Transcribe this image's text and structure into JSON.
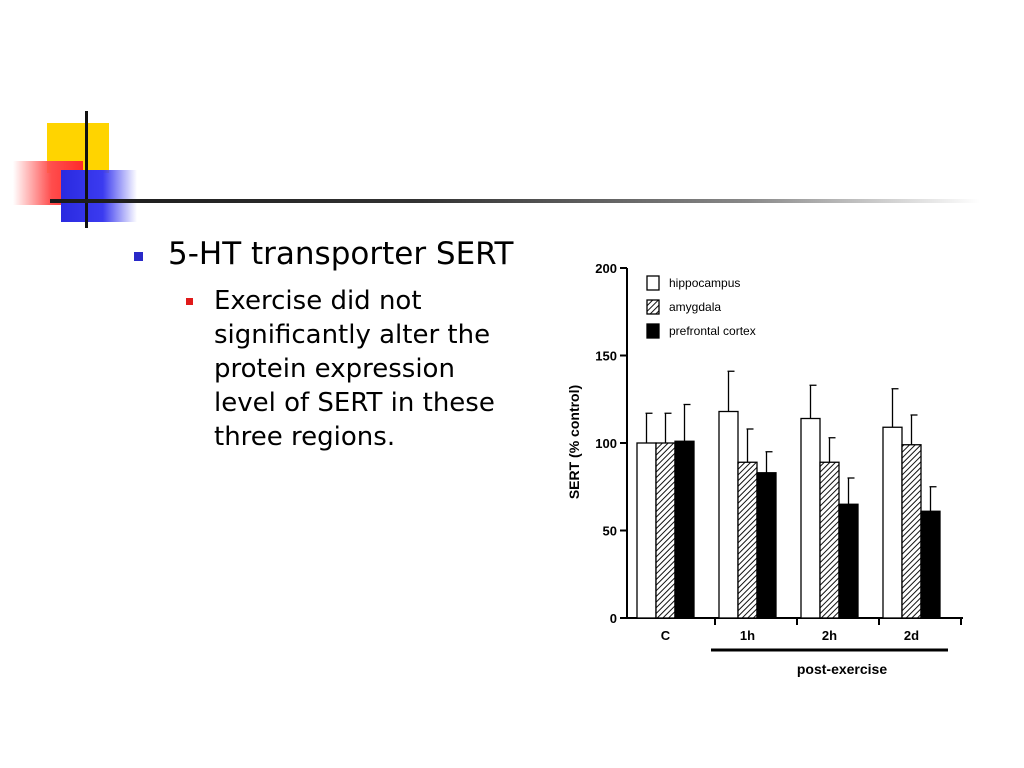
{
  "slide": {
    "bullet_1": "5-HT transporter SERT",
    "bullet_2": "Exercise did not significantly alter the protein expression level of SERT in these three regions."
  },
  "colors": {
    "bullet_primary": "#2929c8",
    "bullet_secondary": "#e01a1a",
    "logo_yellow": "#ffd400",
    "logo_red": "#ff2a2a",
    "logo_blue": "#2a2ae0"
  },
  "chart_data": {
    "type": "bar",
    "title": "",
    "ylabel": "SERT (% control)",
    "xlabel": "post-exercise",
    "ylim": [
      0,
      200
    ],
    "yticks": [
      0,
      50,
      100,
      150,
      200
    ],
    "categories": [
      "C",
      "1h",
      "2h",
      "2d"
    ],
    "group_label": {
      "text": "post-exercise",
      "spans": [
        "1h",
        "2h",
        "2d"
      ]
    },
    "legend_position": "top-left",
    "grid": false,
    "series": [
      {
        "name": "hippocampus",
        "fill": "white",
        "values": [
          100,
          118,
          114,
          109
        ],
        "errors": [
          17,
          23,
          19,
          22
        ]
      },
      {
        "name": "amygdala",
        "fill": "hatched",
        "values": [
          100,
          89,
          89,
          99
        ],
        "errors": [
          17,
          19,
          14,
          17
        ]
      },
      {
        "name": "prefrontal cortex",
        "fill": "black",
        "values": [
          101,
          83,
          65,
          61
        ],
        "errors": [
          21,
          12,
          15,
          14
        ]
      }
    ]
  }
}
